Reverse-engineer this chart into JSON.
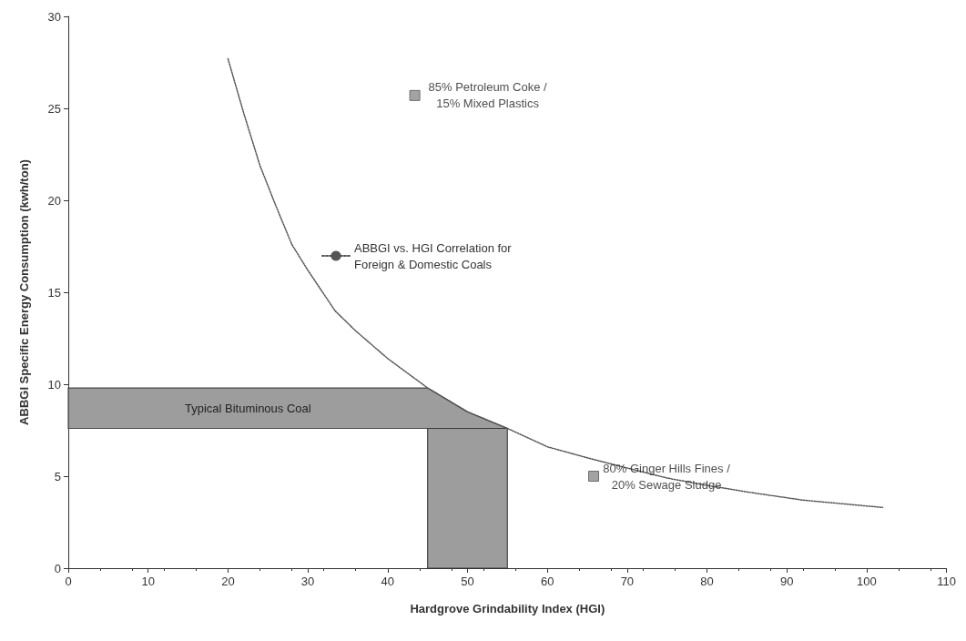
{
  "chart_data": {
    "type": "line",
    "xlabel": "Hardgrove Grindability Index (HGI)",
    "ylabel": "ABBGI Specific Energy Consumption (kwh/ton)",
    "xlim": [
      0,
      110
    ],
    "xticks": [
      0,
      10,
      20,
      30,
      40,
      50,
      60,
      70,
      80,
      90,
      100,
      110
    ],
    "ylim": [
      0,
      30
    ],
    "yticks": [
      0,
      5,
      10,
      15,
      20,
      25,
      30
    ],
    "grid": false,
    "legend": "left",
    "series": [
      {
        "name": "ABBGI vs. HGI Correlation for\nForeign & Domestic Coals",
        "color": "#555555",
        "line_style": "dotted",
        "marker": "none",
        "x": [
          20,
          22,
          24,
          26,
          28,
          30,
          33.4,
          36,
          40,
          45,
          50,
          55,
          60,
          65,
          69.5,
          75,
          80,
          85.7,
          92,
          102
        ],
        "values": [
          27.7,
          24.7,
          21.9,
          19.7,
          17.6,
          16.2,
          14.0,
          12.9,
          11.4,
          9.8,
          8.5,
          7.6,
          6.6,
          6.0,
          5.5,
          4.9,
          4.5,
          4.1,
          3.7,
          3.3
        ]
      },
      {
        "type": "scatter",
        "color": "#8c8c8c",
        "marker": "square",
        "x": [
          43.4,
          65.8
        ],
        "values": [
          25.7,
          5.0
        ]
      }
    ],
    "bands": [
      {
        "axis": "y",
        "from": 7.6,
        "to": 9.8,
        "label": "Typical Bituminous Coal",
        "color": "#8c8c8c"
      },
      {
        "axis": "x",
        "from": 45,
        "to": 55,
        "color": "#8c8c8c"
      }
    ],
    "annotations": [
      {
        "text": "85% Petroleum Coke /\n15% Mixed Plastics",
        "x": 43.4,
        "y": 25.7
      },
      {
        "text": "80% Ginger Hills Fines /\n20% Sewage Sludge",
        "x": 65.8,
        "y": 5.0
      }
    ]
  }
}
